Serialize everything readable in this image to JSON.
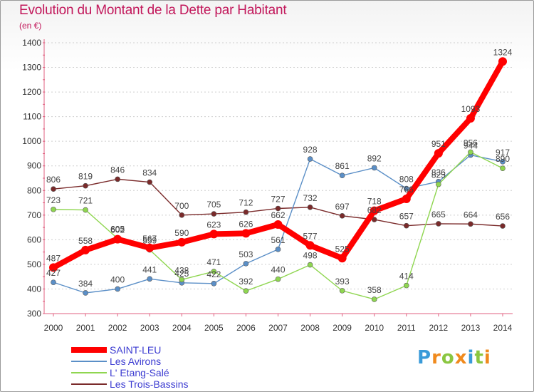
{
  "header": {
    "title": "Evolution du Montant de la Dette par Habitant",
    "subtitle": "(en €)"
  },
  "logo": {
    "text": "Proxiti"
  },
  "colors": {
    "title": "#c2185b",
    "axis": "#e06080",
    "grid": "#cfcfcf",
    "legend_text": "#3b3bd1"
  },
  "chart_data": {
    "type": "line",
    "x": [
      "2000",
      "2001",
      "2002",
      "2003",
      "2004",
      "2005",
      "2006",
      "2007",
      "2008",
      "2009",
      "2010",
      "2011",
      "2012",
      "2013",
      "2014"
    ],
    "ylim": [
      300,
      1400
    ],
    "yticks": [
      300,
      400,
      500,
      600,
      700,
      800,
      900,
      1000,
      1100,
      1200,
      1300,
      1400
    ],
    "grid": "horizontal dashed",
    "legend_position": "bottom-left",
    "series": [
      {
        "name": "SAINT-LEU",
        "color": "#ff0000",
        "values": [
          487,
          558,
          602,
          567,
          590,
          623,
          626,
          662,
          577,
          525,
          718,
          766,
          951,
          1093,
          1324
        ],
        "labels": [
          "487",
          "558",
          "602",
          "567",
          "590",
          "623",
          "626",
          "662",
          "577",
          "525",
          "718",
          "766",
          "951",
          "1093",
          "1324"
        ]
      },
      {
        "name": "Les Avirons",
        "color": "#5b8fc7",
        "values": [
          427,
          384,
          400,
          441,
          425,
          422,
          503,
          561,
          928,
          861,
          892,
          808,
          836,
          944,
          917
        ],
        "labels": [
          "427",
          "384",
          "400",
          "441",
          "425",
          "422",
          "503",
          "561",
          "928",
          "861",
          "892",
          "808",
          "836",
          "944",
          "917"
        ]
      },
      {
        "name": "L' Etang-Salé",
        "color": "#8fd650",
        "values": [
          723,
          721,
          605,
          559,
          438,
          471,
          392,
          440,
          498,
          393,
          358,
          414,
          825,
          956,
          890
        ],
        "labels": [
          "723",
          "721",
          "605",
          "559",
          "438",
          "471",
          "392",
          "440",
          "498",
          "393",
          "358",
          "414",
          "825",
          "956",
          "890"
        ]
      },
      {
        "name": "Les Trois-Bassins",
        "color": "#7a2a2a",
        "values": [
          806,
          819,
          846,
          834,
          700,
          705,
          712,
          727,
          732,
          697,
          682,
          657,
          665,
          664,
          656
        ],
        "labels": [
          "806",
          "819",
          "846",
          "834",
          "700",
          "705",
          "712",
          "727",
          "732",
          "697",
          "682",
          "657",
          "665",
          "664",
          "656"
        ]
      }
    ]
  }
}
